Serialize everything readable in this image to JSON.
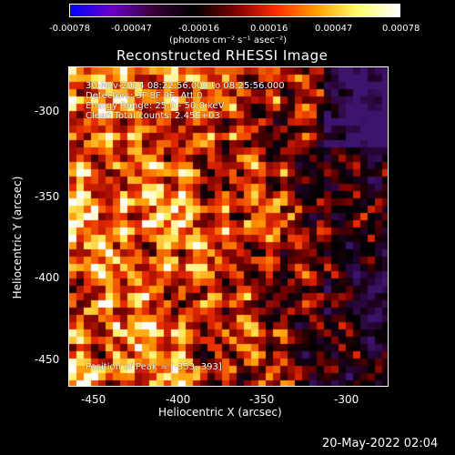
{
  "colorbar": {
    "ticks": [
      "-0.00078",
      "-0.00047",
      "-0.00016",
      "0.00016",
      "0.00047",
      "0.00078"
    ],
    "units": "(photons cm⁻² s⁻¹ asec⁻²)",
    "colors": [
      "#0000ff",
      "#6a00c8",
      "#3a003a",
      "#000000",
      "#7a0000",
      "#ff2a00",
      "#ffa000",
      "#ffff70",
      "#ffffff"
    ]
  },
  "title": "Reconstructed RHESSI Image",
  "annotations": {
    "time_range": "30-Nov-2014 08:22:56.000 to 08:25:56.000",
    "detectors": "Detectors: 3F 8F 9F, Att 0",
    "energy": "Energy Range: 25.0 - 50.0 keV",
    "clean": "Clean    Total counts: 2.45E+03",
    "peak": "Position of Peak = [-353,-393]"
  },
  "axes": {
    "xlabel": "Heliocentric X (arcsec)",
    "ylabel": "Heliocentric Y (arcsec)",
    "xticks": [
      "-450",
      "-400",
      "-350",
      "-300"
    ],
    "yticks": [
      "-300",
      "-350",
      "-400",
      "-450"
    ],
    "xlim": [
      -470,
      -275
    ],
    "ylim": [
      -465,
      -285
    ]
  },
  "footer": {
    "date": "20-May-2022 02:04"
  }
}
